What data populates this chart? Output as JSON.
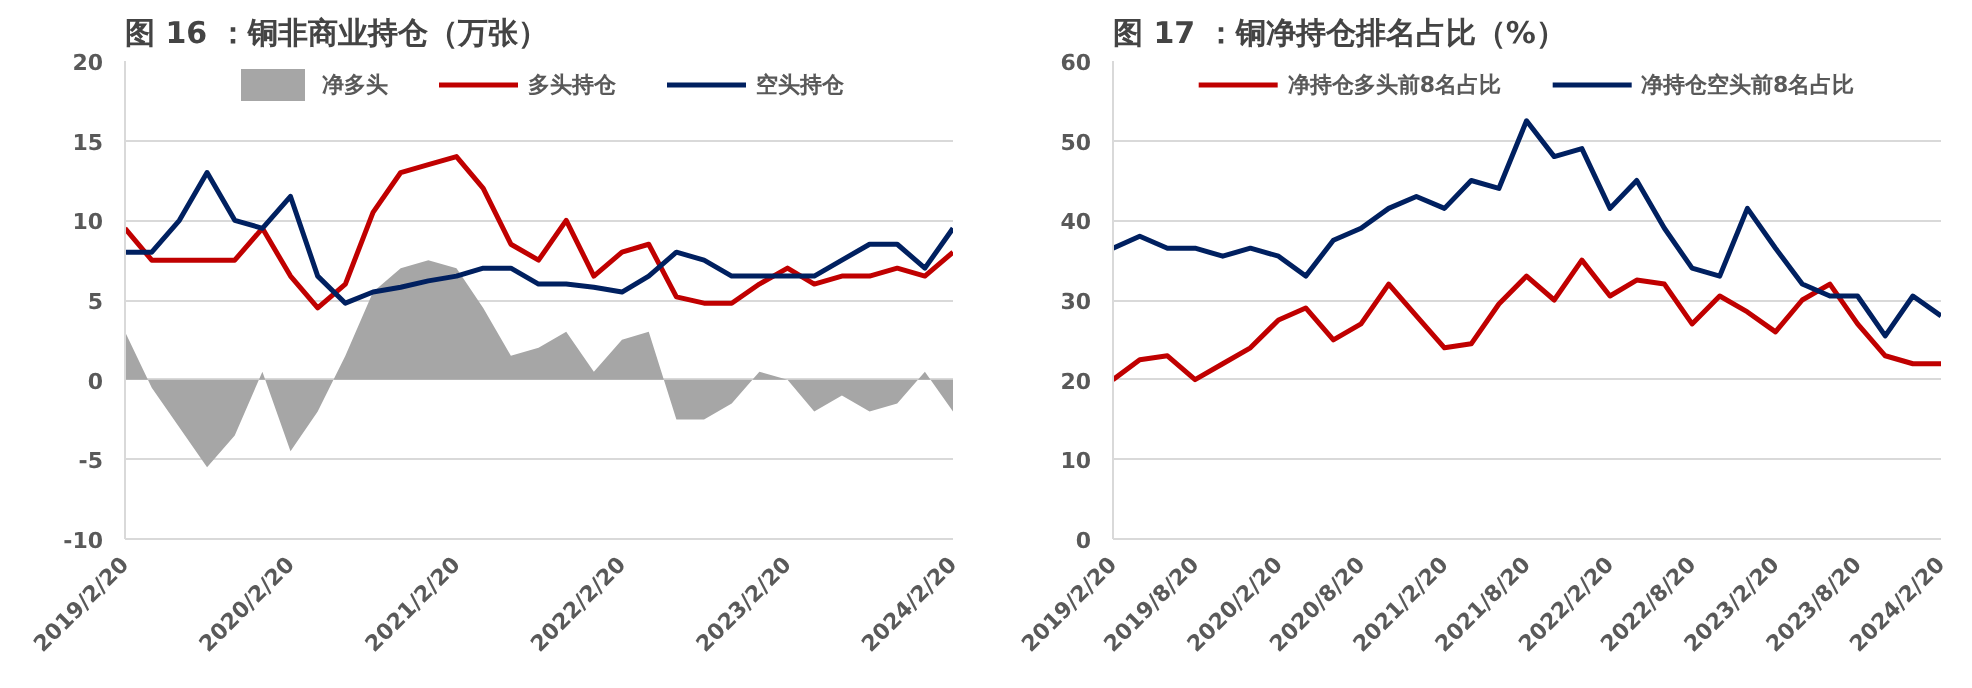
{
  "chart_data": [
    {
      "type": "line",
      "title": "图 16 ：铜非商业持仓（万张）",
      "x": [
        "2019-02-20",
        "2019-04-20",
        "2019-06-20",
        "2019-08-20",
        "2019-10-20",
        "2019-12-20",
        "2020-02-20",
        "2020-04-20",
        "2020-06-20",
        "2020-08-20",
        "2020-10-20",
        "2020-12-20",
        "2021-02-20",
        "2021-04-20",
        "2021-06-20",
        "2021-08-20",
        "2021-10-20",
        "2021-12-20",
        "2022-02-20",
        "2022-04-20",
        "2022-06-20",
        "2022-08-20",
        "2022-10-20",
        "2022-12-20",
        "2023-02-20",
        "2023-04-20",
        "2023-06-20",
        "2023-08-20",
        "2023-10-20",
        "2023-12-20",
        "2024-02-20"
      ],
      "series": [
        {
          "name": "净多头",
          "type": "area",
          "color": "#a6a6a6",
          "values": [
            3,
            -0.5,
            -3,
            -5.5,
            -3.5,
            0.5,
            -4.5,
            -2,
            1.5,
            5.5,
            7,
            7.5,
            7,
            4.5,
            1.5,
            2,
            3,
            0.5,
            2.5,
            3,
            -2.5,
            -2.5,
            -1.5,
            0.5,
            0,
            -2,
            -1,
            -2,
            -1.5,
            0.5,
            -2
          ]
        },
        {
          "name": "多头持仓",
          "color": "#c00000",
          "values": [
            9.5,
            7.5,
            7.5,
            7.5,
            7.5,
            9.5,
            6.5,
            4.5,
            6,
            10.5,
            13,
            13.5,
            14,
            12,
            8.5,
            7.5,
            10,
            6.5,
            8,
            8.5,
            5.2,
            4.8,
            4.8,
            6,
            7,
            6,
            6.5,
            6.5,
            7,
            6.5,
            8
          ]
        },
        {
          "name": "空头持仓",
          "color": "#002060",
          "values": [
            8,
            8,
            10,
            13,
            10,
            9.5,
            11.5,
            6.5,
            4.8,
            5.5,
            5.8,
            6.2,
            6.5,
            7,
            7,
            6,
            6,
            5.8,
            5.5,
            6.5,
            8,
            7.5,
            6.5,
            6.5,
            6.5,
            6.5,
            7.5,
            8.5,
            8.5,
            7,
            9.5
          ]
        }
      ],
      "xlim": [
        "2019-02-20",
        "2024-02-20"
      ],
      "xticks": [
        {
          "value": "2019-02-20",
          "label": "2019/2/20"
        },
        {
          "value": "2020-02-20",
          "label": "2020/2/20"
        },
        {
          "value": "2021-02-20",
          "label": "2021/2/20"
        },
        {
          "value": "2022-02-20",
          "label": "2022/2/20"
        },
        {
          "value": "2023-02-20",
          "label": "2023/2/20"
        },
        {
          "value": "2024-02-20",
          "label": "2024/2/20"
        }
      ],
      "ylim": [
        -10,
        20
      ],
      "yticks": [
        -10,
        -5,
        0,
        5,
        10,
        15,
        20
      ],
      "grid": "y",
      "legend": "top"
    },
    {
      "type": "line",
      "title": "图 17 ：铜净持仓排名占比（%）",
      "x": [
        "2019-02-20",
        "2019-04-20",
        "2019-06-20",
        "2019-08-20",
        "2019-10-20",
        "2019-12-20",
        "2020-02-20",
        "2020-04-20",
        "2020-06-20",
        "2020-08-20",
        "2020-10-20",
        "2020-12-20",
        "2021-02-20",
        "2021-04-20",
        "2021-06-20",
        "2021-08-20",
        "2021-10-20",
        "2021-12-20",
        "2022-02-20",
        "2022-04-20",
        "2022-06-20",
        "2022-08-20",
        "2022-10-20",
        "2022-12-20",
        "2023-02-20",
        "2023-04-20",
        "2023-06-20",
        "2023-08-20",
        "2023-10-20",
        "2023-12-20",
        "2024-02-20"
      ],
      "series": [
        {
          "name": "净持仓多头前8名占比",
          "color": "#c00000",
          "values": [
            20,
            22.5,
            23,
            20,
            22,
            24,
            27.5,
            29,
            25,
            27,
            32,
            28,
            24,
            24.5,
            29.5,
            33,
            30,
            35,
            30.5,
            32.5,
            32,
            27,
            30.5,
            28.5,
            26,
            30,
            32,
            27,
            23,
            22,
            22
          ]
        },
        {
          "name": "净持仓空头前8名占比",
          "color": "#002060",
          "values": [
            36.5,
            38,
            36.5,
            36.5,
            35.5,
            36.5,
            35.5,
            33,
            37.5,
            39,
            41.5,
            43,
            41.5,
            45,
            44,
            52.5,
            48,
            49,
            41.5,
            45,
            39,
            34,
            33,
            41.5,
            36.5,
            32,
            30.5,
            30.5,
            25.5,
            30.5,
            28
          ]
        }
      ],
      "xlim": [
        "2019-02-20",
        "2024-02-20"
      ],
      "xticks": [
        {
          "value": "2019-02-20",
          "label": "2019/2/20"
        },
        {
          "value": "2019-08-20",
          "label": "2019/8/20"
        },
        {
          "value": "2020-02-20",
          "label": "2020/2/20"
        },
        {
          "value": "2020-08-20",
          "label": "2020/8/20"
        },
        {
          "value": "2021-02-20",
          "label": "2021/2/20"
        },
        {
          "value": "2021-08-20",
          "label": "2021/8/20"
        },
        {
          "value": "2022-02-20",
          "label": "2022/2/20"
        },
        {
          "value": "2022-08-20",
          "label": "2022/8/20"
        },
        {
          "value": "2023-02-20",
          "label": "2023/2/20"
        },
        {
          "value": "2023-08-20",
          "label": "2023/8/20"
        },
        {
          "value": "2024-02-20",
          "label": "2024/2/20"
        }
      ],
      "ylim": [
        0,
        60
      ],
      "yticks": [
        0,
        10,
        20,
        30,
        40,
        50,
        60
      ],
      "grid": "y",
      "legend": "top"
    }
  ]
}
